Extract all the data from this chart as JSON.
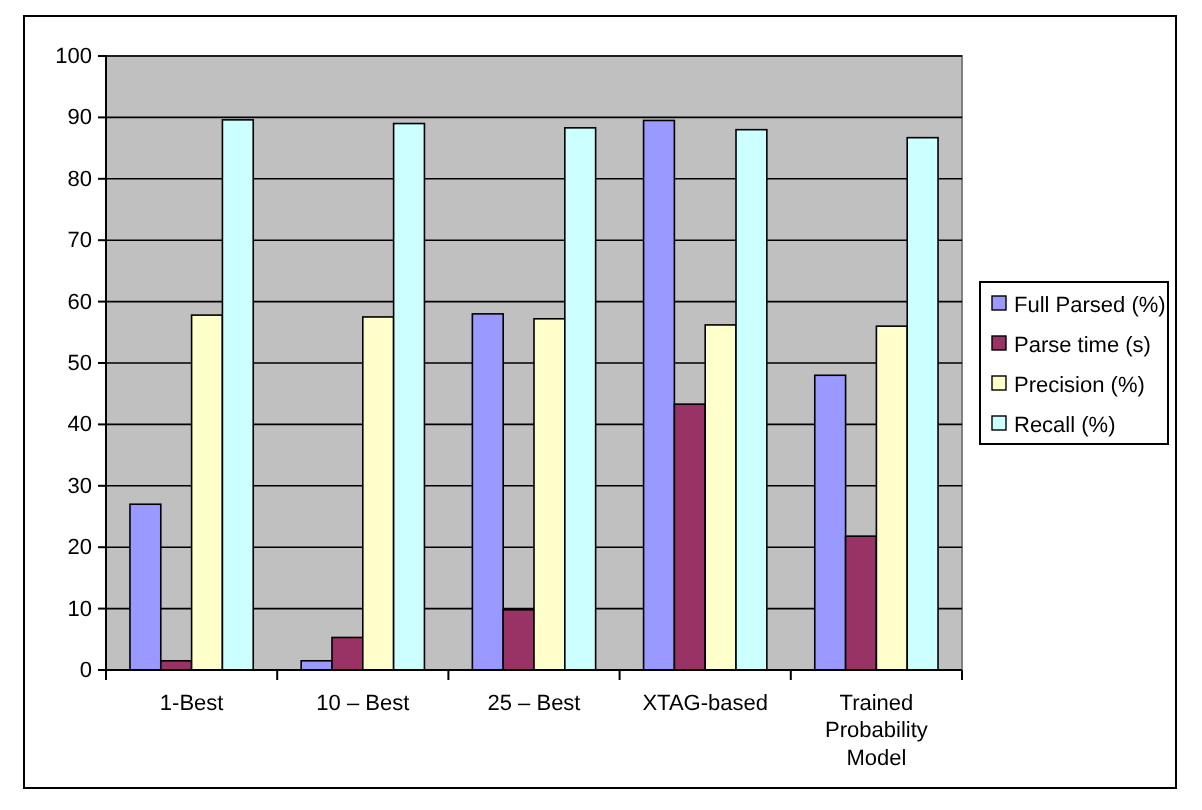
{
  "chart_data": {
    "type": "bar",
    "categories": [
      "1-Best",
      "10 – Best",
      "25 – Best",
      "XTAG-based",
      "Trained Probability Model"
    ],
    "series": [
      {
        "name": "Full Parsed (%)",
        "color": "#9999ff",
        "values": [
          27,
          1.5,
          58,
          89.5,
          48
        ]
      },
      {
        "name": "Parse time (s)",
        "color": "#993366",
        "values": [
          1.5,
          5.3,
          9.8,
          43.3,
          21.8
        ]
      },
      {
        "name": "Precision (%)",
        "color": "#ffffcc",
        "values": [
          57.8,
          57.5,
          57.2,
          56.2,
          56
        ]
      },
      {
        "name": "Recall (%)",
        "color": "#ccffff",
        "values": [
          89.6,
          89,
          88.3,
          88,
          86.7
        ]
      }
    ],
    "ylim": [
      0,
      100
    ],
    "yticks": [
      0,
      10,
      20,
      30,
      40,
      50,
      60,
      70,
      80,
      90,
      100
    ],
    "grid": "y",
    "legend": "right"
  }
}
